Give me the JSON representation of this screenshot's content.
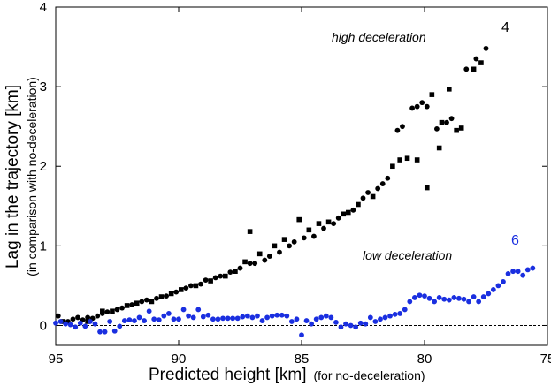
{
  "chart_data": {
    "type": "scatter",
    "xlabel": "Predicted height [km]",
    "xlabel_sub": "(for no-deceleration)",
    "ylabel": "Lag in the trajectory [km]",
    "ylabel_sub": "(in comparison with no-deceleration)",
    "xlim": [
      95,
      75
    ],
    "ylim": [
      -0.25,
      4
    ],
    "xticks": [
      95,
      90,
      85,
      80,
      75
    ],
    "yticks": [
      0,
      1,
      2,
      3,
      4
    ],
    "reference_line": {
      "y": 0,
      "style": "dashed"
    },
    "annotations": [
      {
        "text": "high deceleration"
      },
      {
        "text": "low deceleration"
      }
    ],
    "series": [
      {
        "name": "4",
        "color": "#000000",
        "marker": "circle",
        "points": [
          [
            94.9,
            0.12
          ],
          [
            94.5,
            0.05
          ],
          [
            94.3,
            0.08
          ],
          [
            94.1,
            0.1
          ],
          [
            93.9,
            0.07
          ],
          [
            93.7,
            0.1
          ],
          [
            93.5,
            0.09
          ],
          [
            93.3,
            0.12
          ],
          [
            93.1,
            0.15
          ],
          [
            92.9,
            0.17
          ],
          [
            92.5,
            0.2
          ],
          [
            92.3,
            0.22
          ],
          [
            91.9,
            0.26
          ],
          [
            91.5,
            0.3
          ],
          [
            91.3,
            0.32
          ],
          [
            90.9,
            0.34
          ],
          [
            90.5,
            0.37
          ],
          [
            90.1,
            0.42
          ],
          [
            89.7,
            0.47
          ],
          [
            89.5,
            0.5
          ],
          [
            89.1,
            0.52
          ],
          [
            88.9,
            0.57
          ],
          [
            88.5,
            0.6
          ],
          [
            88.3,
            0.62
          ],
          [
            87.9,
            0.67
          ],
          [
            87.5,
            0.72
          ],
          [
            87.1,
            0.78
          ],
          [
            86.9,
            0.78
          ],
          [
            86.5,
            0.82
          ],
          [
            86.3,
            0.87
          ],
          [
            85.9,
            0.92
          ],
          [
            85.5,
            1.0
          ],
          [
            85.3,
            1.05
          ],
          [
            84.9,
            1.1
          ],
          [
            84.5,
            1.12
          ],
          [
            84.1,
            1.22
          ],
          [
            83.7,
            1.28
          ],
          [
            83.5,
            1.35
          ],
          [
            82.9,
            1.45
          ],
          [
            82.5,
            1.6
          ],
          [
            82.3,
            1.67
          ],
          [
            81.9,
            1.72
          ],
          [
            81.7,
            1.78
          ],
          [
            81.5,
            1.85
          ],
          [
            81.1,
            2.45
          ],
          [
            80.9,
            2.5
          ],
          [
            80.5,
            2.73
          ],
          [
            80.3,
            2.75
          ],
          [
            80.1,
            2.8
          ],
          [
            79.9,
            2.75
          ],
          [
            79.5,
            2.47
          ],
          [
            79.1,
            2.55
          ],
          [
            78.9,
            2.6
          ],
          [
            78.3,
            3.22
          ],
          [
            77.9,
            3.35
          ],
          [
            77.5,
            3.48
          ]
        ]
      },
      {
        "name": "4",
        "color": "#000000",
        "marker": "square",
        "points": [
          [
            94.7,
            0.05
          ],
          [
            93.7,
            0.05
          ],
          [
            93.1,
            0.18
          ],
          [
            92.7,
            0.18
          ],
          [
            92.1,
            0.25
          ],
          [
            91.7,
            0.28
          ],
          [
            91.1,
            0.3
          ],
          [
            90.7,
            0.36
          ],
          [
            90.3,
            0.4
          ],
          [
            89.9,
            0.45
          ],
          [
            89.3,
            0.5
          ],
          [
            88.7,
            0.56
          ],
          [
            88.1,
            0.62
          ],
          [
            87.7,
            0.68
          ],
          [
            87.3,
            0.8
          ],
          [
            86.7,
            0.9
          ],
          [
            86.1,
            1.0
          ],
          [
            85.7,
            1.08
          ],
          [
            85.1,
            1.33
          ],
          [
            84.7,
            1.2
          ],
          [
            84.3,
            1.28
          ],
          [
            83.9,
            1.3
          ],
          [
            83.3,
            1.4
          ],
          [
            83.1,
            1.42
          ],
          [
            82.7,
            1.52
          ],
          [
            82.1,
            1.62
          ],
          [
            81.3,
            2.0
          ],
          [
            81.0,
            2.08
          ],
          [
            80.7,
            2.1
          ],
          [
            80.3,
            2.08
          ],
          [
            79.9,
            1.73
          ],
          [
            79.3,
            2.55
          ],
          [
            78.7,
            2.45
          ],
          [
            78.5,
            2.48
          ],
          [
            78.0,
            3.22
          ],
          [
            77.7,
            3.3
          ],
          [
            87.1,
            1.18
          ],
          [
            79.7,
            2.9
          ],
          [
            79.0,
            2.97
          ],
          [
            79.4,
            2.23
          ]
        ]
      },
      {
        "name": "6",
        "color": "#1a2fe0",
        "marker": "circle",
        "points": [
          [
            95.0,
            0.03
          ],
          [
            94.8,
            0.05
          ],
          [
            94.6,
            0.02
          ],
          [
            94.4,
            0.01
          ],
          [
            94.2,
            -0.02
          ],
          [
            94.0,
            0.03
          ],
          [
            93.8,
            -0.01
          ],
          [
            93.6,
            0.05
          ],
          [
            93.4,
            0.02
          ],
          [
            93.2,
            -0.08
          ],
          [
            93.0,
            -0.08
          ],
          [
            92.8,
            0.05
          ],
          [
            92.6,
            -0.07
          ],
          [
            92.4,
            -0.01
          ],
          [
            92.2,
            0.06
          ],
          [
            92.0,
            0.07
          ],
          [
            91.8,
            0.06
          ],
          [
            91.6,
            0.1
          ],
          [
            91.4,
            0.06
          ],
          [
            91.2,
            0.18
          ],
          [
            91.0,
            0.08
          ],
          [
            90.8,
            0.07
          ],
          [
            90.6,
            0.12
          ],
          [
            90.4,
            0.15
          ],
          [
            90.2,
            0.08
          ],
          [
            90.0,
            0.08
          ],
          [
            89.8,
            0.2
          ],
          [
            89.6,
            0.12
          ],
          [
            89.4,
            0.1
          ],
          [
            89.2,
            0.2
          ],
          [
            89.0,
            0.11
          ],
          [
            88.8,
            0.13
          ],
          [
            88.6,
            0.08
          ],
          [
            88.4,
            0.08
          ],
          [
            88.2,
            0.09
          ],
          [
            88.0,
            0.09
          ],
          [
            87.8,
            0.09
          ],
          [
            87.6,
            0.09
          ],
          [
            87.4,
            0.11
          ],
          [
            87.2,
            0.12
          ],
          [
            87.0,
            0.1
          ],
          [
            86.8,
            0.12
          ],
          [
            86.6,
            0.06
          ],
          [
            86.4,
            0.1
          ],
          [
            86.2,
            0.12
          ],
          [
            86.0,
            0.13
          ],
          [
            85.8,
            0.13
          ],
          [
            85.6,
            0.12
          ],
          [
            85.4,
            0.05
          ],
          [
            85.2,
            0.08
          ],
          [
            85.0,
            -0.12
          ],
          [
            84.8,
            0.06
          ],
          [
            84.6,
            0.02
          ],
          [
            84.4,
            0.08
          ],
          [
            84.2,
            0.1
          ],
          [
            84.0,
            0.12
          ],
          [
            83.8,
            0.1
          ],
          [
            83.6,
            0.04
          ],
          [
            83.4,
            -0.02
          ],
          [
            83.2,
            0.02
          ],
          [
            83.0,
            0.0
          ],
          [
            82.8,
            -0.02
          ],
          [
            82.6,
            0.03
          ],
          [
            82.4,
            0.02
          ],
          [
            82.2,
            0.1
          ],
          [
            82.0,
            0.05
          ],
          [
            81.8,
            0.08
          ],
          [
            81.6,
            0.1
          ],
          [
            81.4,
            0.12
          ],
          [
            81.2,
            0.14
          ],
          [
            81.0,
            0.15
          ],
          [
            80.8,
            0.2
          ],
          [
            80.6,
            0.3
          ],
          [
            80.4,
            0.35
          ],
          [
            80.2,
            0.38
          ],
          [
            80.0,
            0.37
          ],
          [
            79.8,
            0.34
          ],
          [
            79.6,
            0.3
          ],
          [
            79.4,
            0.35
          ],
          [
            79.2,
            0.33
          ],
          [
            79.0,
            0.32
          ],
          [
            78.8,
            0.35
          ],
          [
            78.6,
            0.34
          ],
          [
            78.4,
            0.33
          ],
          [
            78.2,
            0.3
          ],
          [
            78.0,
            0.36
          ],
          [
            77.8,
            0.3
          ],
          [
            77.6,
            0.36
          ],
          [
            77.4,
            0.4
          ],
          [
            77.2,
            0.45
          ],
          [
            77.0,
            0.5
          ],
          [
            76.8,
            0.55
          ],
          [
            76.6,
            0.65
          ],
          [
            76.4,
            0.68
          ],
          [
            76.2,
            0.68
          ],
          [
            76.0,
            0.63
          ],
          [
            75.8,
            0.7
          ],
          [
            75.6,
            0.72
          ]
        ]
      }
    ]
  }
}
